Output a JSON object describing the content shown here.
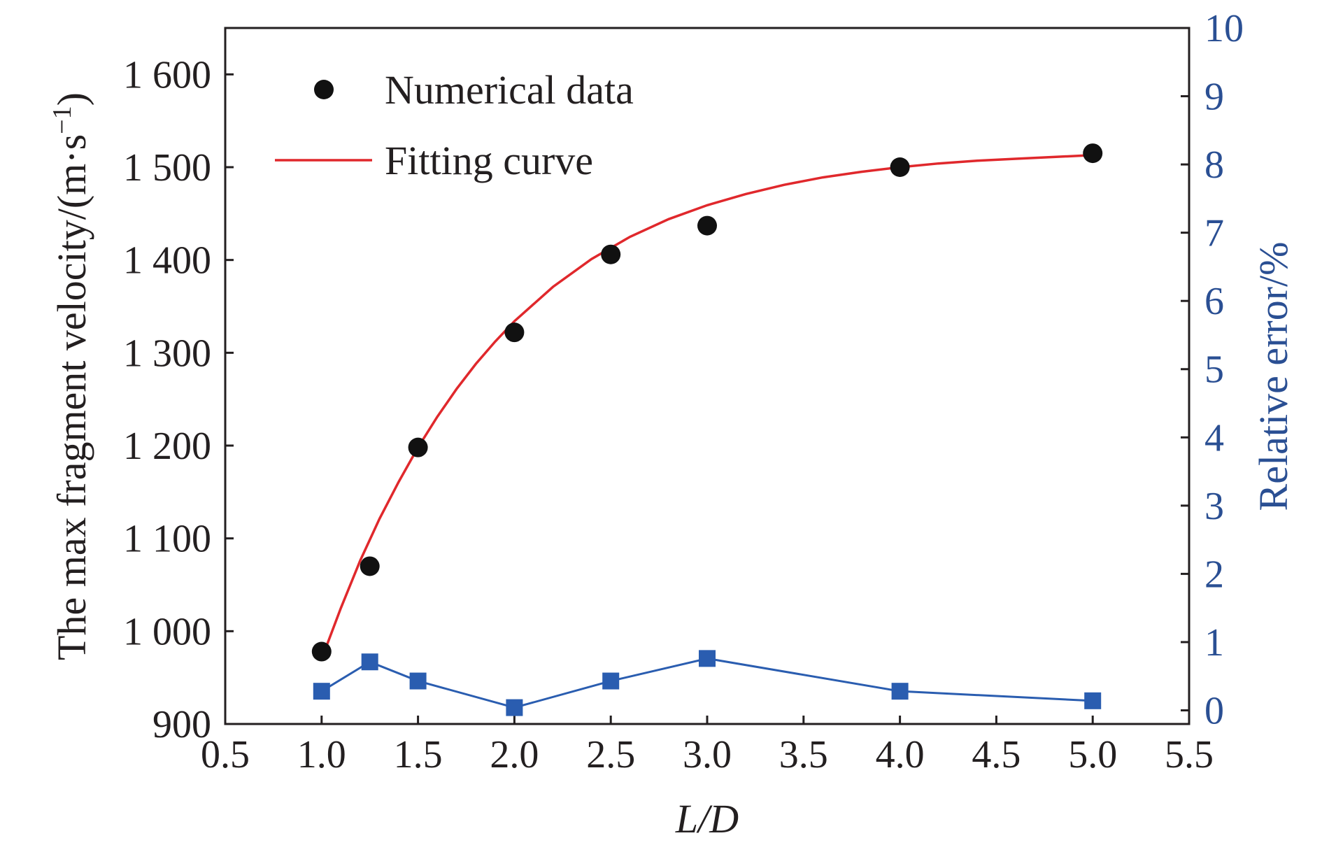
{
  "chart_data": {
    "type": "line",
    "xlabel": "L/D",
    "ylabel": "The max fragment velocity/(m·s",
    "ylabel_unit_exp": "−1",
    "ylabel_close": ")",
    "y2label": "Relative error/%",
    "xlim": [
      0.5,
      5.5
    ],
    "ylim": [
      900,
      1650
    ],
    "y2lim": [
      -0.2,
      10
    ],
    "xticks": [
      0.5,
      1.0,
      1.5,
      2.0,
      2.5,
      3.0,
      3.5,
      4.0,
      4.5,
      5.0,
      5.5
    ],
    "xtick_labels": [
      "0.5",
      "1.0",
      "1.5",
      "2.0",
      "2.5",
      "3.0",
      "3.5",
      "4.0",
      "4.5",
      "5.0",
      "5.5"
    ],
    "yticks": [
      900,
      1000,
      1100,
      1200,
      1300,
      1400,
      1500,
      1600
    ],
    "ytick_labels": [
      "900",
      "1 000",
      "1 100",
      "1 200",
      "1 300",
      "1 400",
      "1 500",
      "1 600"
    ],
    "y2ticks": [
      0,
      1,
      2,
      3,
      4,
      5,
      6,
      7,
      8,
      9,
      10
    ],
    "y2tick_labels": [
      "0",
      "1",
      "2",
      "3",
      "4",
      "5",
      "6",
      "7",
      "8",
      "9",
      "10"
    ],
    "legend_position": "top-left",
    "grid": false,
    "series": [
      {
        "name": "Numerical data",
        "kind": "scatter",
        "axis": "left",
        "color": "#111111",
        "x": [
          1.0,
          1.25,
          1.5,
          2.0,
          2.5,
          3.0,
          4.0,
          5.0
        ],
        "y": [
          978,
          1070,
          1198,
          1322,
          1406,
          1437,
          1500,
          1515
        ]
      },
      {
        "name": "Fitting curve",
        "kind": "line",
        "axis": "left",
        "color": "#e0282c",
        "x": [
          1.0,
          1.1,
          1.2,
          1.3,
          1.4,
          1.5,
          1.6,
          1.7,
          1.8,
          1.9,
          2.0,
          2.2,
          2.4,
          2.6,
          2.8,
          3.0,
          3.2,
          3.4,
          3.6,
          3.8,
          4.0,
          4.2,
          4.4,
          4.6,
          4.8,
          5.0
        ],
        "y": [
          970,
          1025,
          1076,
          1121,
          1161,
          1198,
          1231,
          1261,
          1288,
          1312,
          1334,
          1371,
          1401,
          1425,
          1444,
          1459,
          1471,
          1481,
          1489,
          1495,
          1500,
          1504,
          1507,
          1509,
          1511,
          1513
        ]
      },
      {
        "kind": "line-markers",
        "axis": "right",
        "color": "#2a5db0",
        "x": [
          1.0,
          1.25,
          1.5,
          2.0,
          2.5,
          3.0,
          4.0,
          5.0
        ],
        "y": [
          0.28,
          0.71,
          0.43,
          0.04,
          0.43,
          0.76,
          0.28,
          0.14
        ]
      }
    ]
  }
}
